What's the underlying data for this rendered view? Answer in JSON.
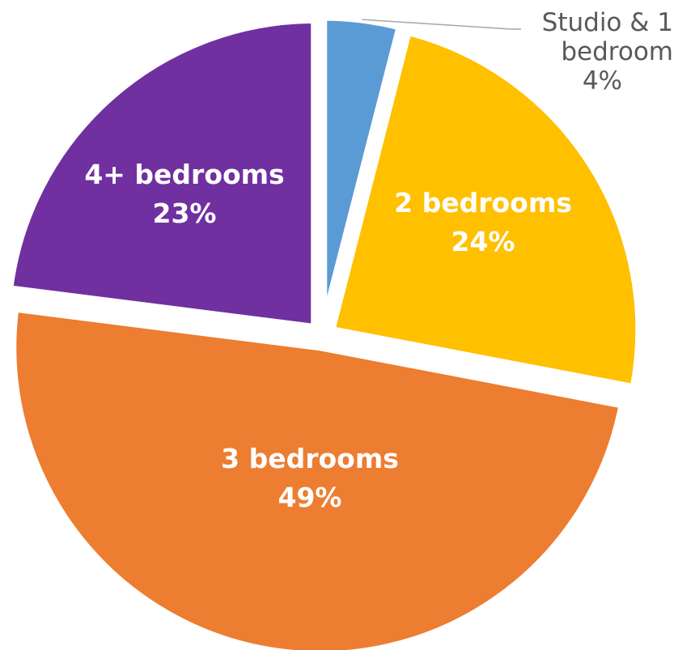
{
  "chart_data": {
    "type": "pie",
    "slices": [
      {
        "label": "Studio & 1 bedroom",
        "label_lines": [
          "Studio & 1",
          "bedroom"
        ],
        "value": 4,
        "value_label": "4%",
        "color": "#5B9BD5",
        "label_position": "outside"
      },
      {
        "label": "2 bedrooms",
        "label_lines": [
          "2 bedrooms"
        ],
        "value": 24,
        "value_label": "24%",
        "color": "#FFC000",
        "label_position": "inside"
      },
      {
        "label": "3 bedrooms",
        "label_lines": [
          "3 bedrooms"
        ],
        "value": 49,
        "value_label": "49%",
        "color": "#ED7D31",
        "label_position": "inside"
      },
      {
        "label": "4+ bedrooms",
        "label_lines": [
          "4+ bedrooms"
        ],
        "value": 23,
        "value_label": "23%",
        "color": "#7030A0",
        "label_position": "inside"
      }
    ],
    "title": "",
    "legend": "none",
    "start_angle": "12 o'clock",
    "direction": "clockwise",
    "exploded": true
  }
}
